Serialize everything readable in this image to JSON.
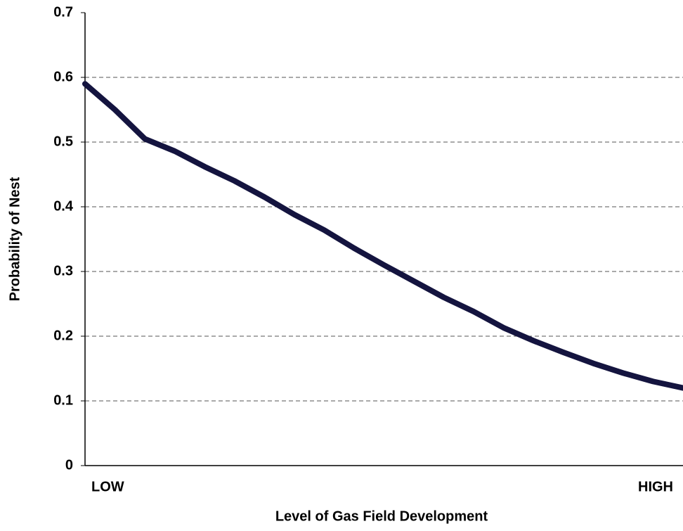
{
  "chart_data": {
    "type": "line",
    "x_label": "Level of Gas Field Development",
    "y_label": "Probability of Nest",
    "categories": [
      "LOW",
      null,
      null,
      null,
      null,
      null,
      null,
      null,
      null,
      null,
      null,
      null,
      null,
      null,
      null,
      null,
      null,
      null,
      null,
      null,
      "HIGH"
    ],
    "series": [
      {
        "name": "Probability of Nest",
        "color": "#14143f",
        "values": [
          0.59,
          0.55,
          0.505,
          0.486,
          0.462,
          0.44,
          0.415,
          0.388,
          0.364,
          0.336,
          0.31,
          0.285,
          0.26,
          0.238,
          0.213,
          0.193,
          0.175,
          0.158,
          0.143,
          0.13,
          0.12
        ]
      }
    ],
    "ylim": [
      0,
      0.7
    ],
    "yticks": [
      0,
      0.1,
      0.2,
      0.3,
      0.4,
      0.5,
      0.6,
      0.7
    ],
    "grid": true
  }
}
